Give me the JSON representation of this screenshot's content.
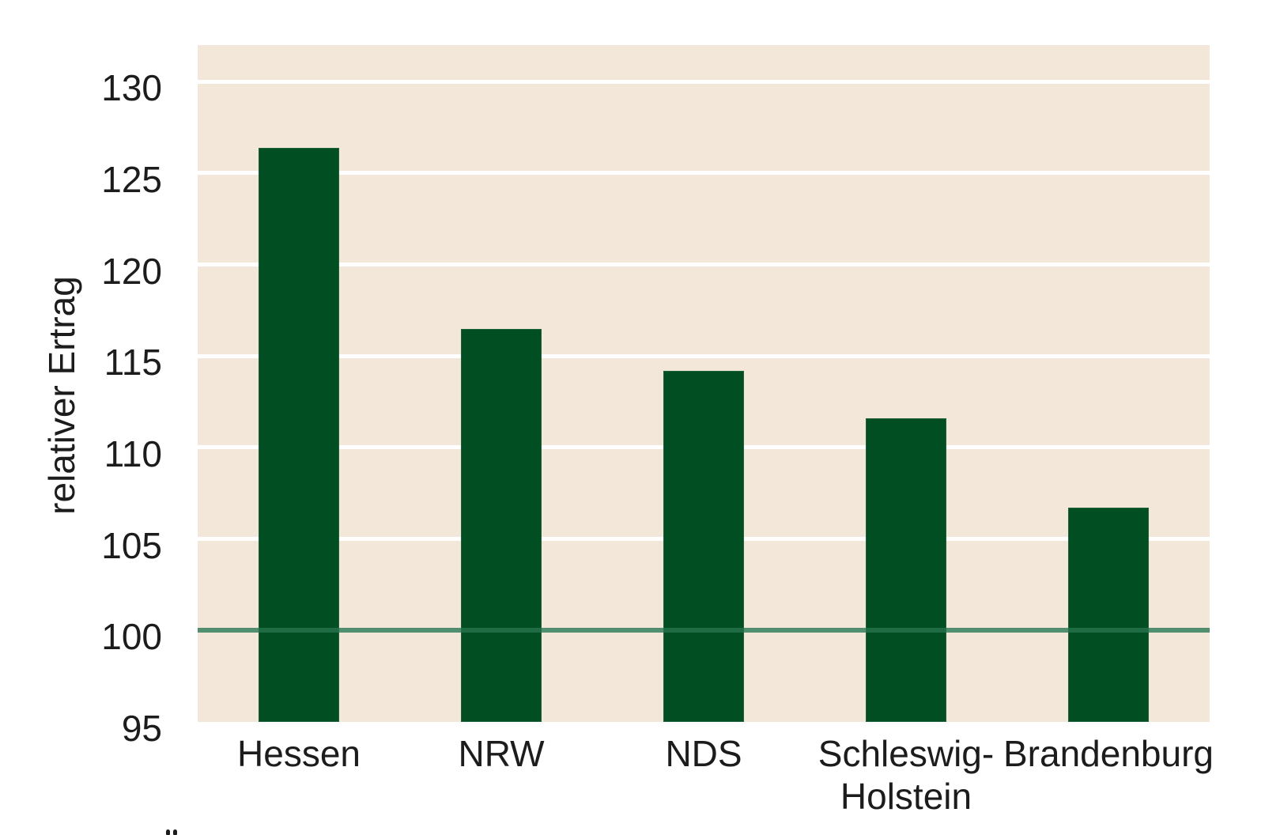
{
  "page": {
    "background": "#ffffff"
  },
  "chart_data": {
    "type": "bar",
    "title": "",
    "categories": [
      "Hessen",
      "NRW",
      "NDS",
      "Schleswig-\nHolstein",
      "Brandenburg"
    ],
    "values": [
      126.4,
      116.5,
      114.2,
      111.6,
      106.7
    ],
    "xlabel": "",
    "ylabel": "relativer Ertrag",
    "ylim": [
      95,
      132
    ],
    "yticks": [
      95,
      100,
      105,
      110,
      115,
      120,
      125,
      130
    ],
    "reference_line": 100,
    "grid": "horizontal",
    "legend": "none",
    "colors": {
      "bar": "#014e22",
      "plot_background": "#f3e7da",
      "gridline": "#ffffff",
      "reference_line": "rgba(38,115,77,0.8)",
      "text": "#1c1c1c",
      "page_background": "#ffffff"
    }
  },
  "footnote": {
    "fragment_icon": "umlaut-dots-of-cutoff-text"
  }
}
